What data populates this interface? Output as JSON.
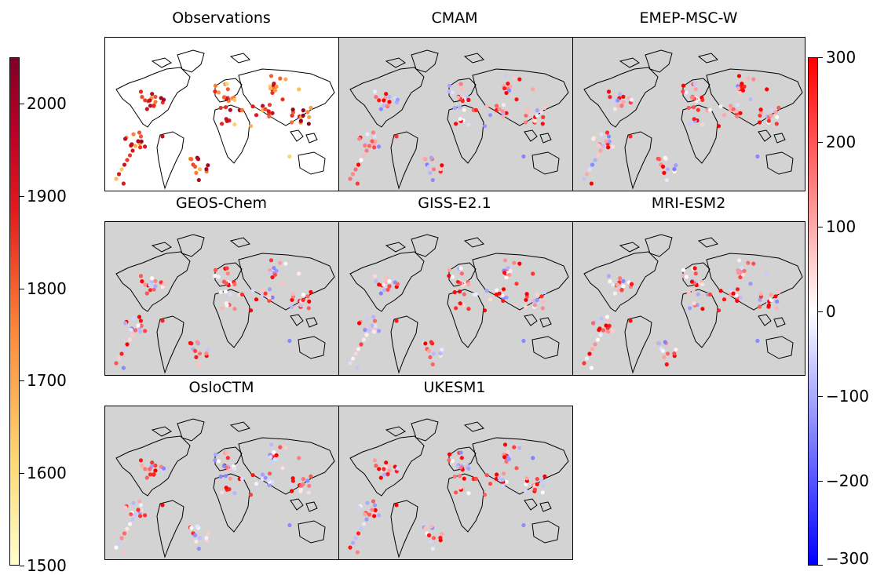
{
  "panels": [
    {
      "title": "Observations",
      "background": "#ffffff",
      "kind": "obs"
    },
    {
      "title": "CMAM",
      "background": "#d3d3d3",
      "kind": "model"
    },
    {
      "title": "EMEP-MSC-W",
      "background": "#d3d3d3",
      "kind": "model"
    },
    {
      "title": "GEOS-Chem",
      "background": "#d3d3d3",
      "kind": "model"
    },
    {
      "title": "GISS-E2.1",
      "background": "#d3d3d3",
      "kind": "model"
    },
    {
      "title": "MRI-ESM2",
      "background": "#d3d3d3",
      "kind": "model"
    },
    {
      "title": "OsloCTM",
      "background": "#d3d3d3",
      "kind": "model"
    },
    {
      "title": "UKESM1",
      "background": "#d3d3d3",
      "kind": "model"
    }
  ],
  "colorbar_left": {
    "colormap": "YlOrRd",
    "range": [
      1500,
      2050
    ],
    "ticks": [
      "1500",
      "1600",
      "1700",
      "1800",
      "1900",
      "2000"
    ],
    "tick_values": [
      1500,
      1600,
      1700,
      1800,
      1900,
      2000
    ],
    "colors": [
      "#ffffcc",
      "#fed976",
      "#fd8d3c",
      "#e31a1c",
      "#800026"
    ]
  },
  "colorbar_right": {
    "colormap": "bwr",
    "range": [
      -300,
      300
    ],
    "ticks": [
      "300",
      "200",
      "100",
      "0",
      "−100",
      "−200",
      "−300"
    ],
    "tick_values": [
      300,
      200,
      100,
      0,
      -100,
      -200,
      -300
    ],
    "colors": [
      "#ff0000",
      "#ffffff",
      "#0000ff"
    ]
  }
}
